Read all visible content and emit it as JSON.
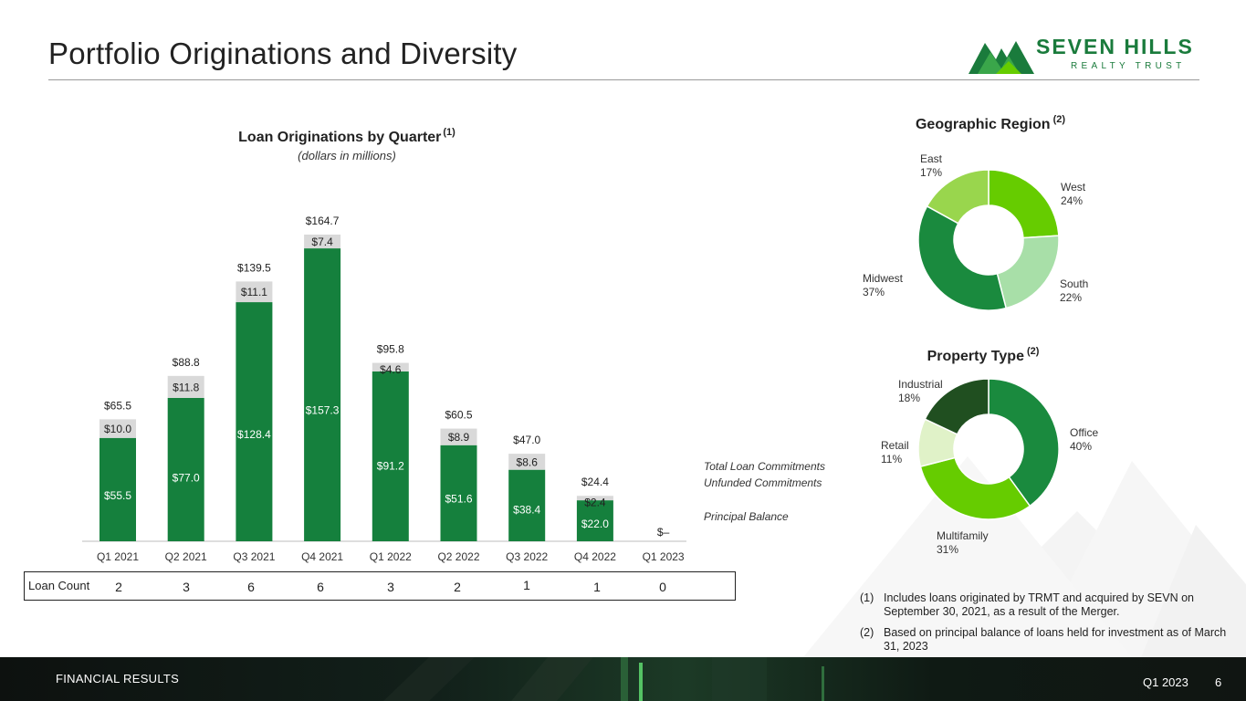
{
  "page": {
    "title": "Portfolio Originations and Diversity",
    "logo": {
      "brand": "SEVEN HILLS",
      "sub": "REALTY TRUST"
    }
  },
  "colors": {
    "primary_green": "#15803d",
    "unfunded_gray": "#d9d9d9",
    "brand_green": "#1a7b3c"
  },
  "legend": {
    "total": "Total Loan Commitments",
    "unfunded": "Unfunded Commitments",
    "principal": "Principal Balance"
  },
  "loan_count": {
    "label": "Loan Count",
    "values": [
      "2",
      "3",
      "6",
      "6",
      "3",
      "2",
      "1",
      "1",
      "0"
    ]
  },
  "chart_data": [
    {
      "type": "bar",
      "stacked": true,
      "title": "Loan Originations by Quarter",
      "title_note": "(1)",
      "subtitle": "(dollars in millions)",
      "categories": [
        "Q1 2021",
        "Q2 2021",
        "Q3 2021",
        "Q4 2021",
        "Q1 2022",
        "Q2 2022",
        "Q3 2022",
        "Q4 2022",
        "Q1 2023"
      ],
      "series": [
        {
          "name": "Principal Balance",
          "color": "#15803d",
          "values": [
            55.5,
            77.0,
            128.4,
            157.3,
            91.2,
            51.6,
            38.4,
            22.0,
            0
          ]
        },
        {
          "name": "Unfunded Commitments",
          "color": "#d9d9d9",
          "values": [
            10.0,
            11.8,
            11.1,
            7.4,
            4.6,
            8.9,
            8.6,
            2.4,
            0
          ]
        }
      ],
      "totals": [
        65.5,
        88.8,
        139.5,
        164.7,
        95.8,
        60.5,
        47.0,
        24.4,
        0
      ],
      "principal_labels": [
        "$55.5",
        "$77.0",
        "$128.4",
        "$157.3",
        "$91.2",
        "$51.6",
        "$38.4",
        "$22.0",
        ""
      ],
      "unfunded_labels": [
        "$10.0",
        "$11.8",
        "$11.1",
        "$7.4",
        "$4.6",
        "$8.9",
        "$8.6",
        "$2.4",
        ""
      ],
      "total_labels": [
        "$65.5",
        "$88.8",
        "$139.5",
        "$164.7",
        "$95.8",
        "$60.5",
        "$47.0",
        "$24.4",
        "$–"
      ],
      "ylim": [
        0,
        175
      ]
    },
    {
      "type": "pie",
      "donut": true,
      "title": "Geographic Region",
      "title_note": "(2)",
      "slices": [
        {
          "label": "West",
          "value": 24,
          "pct": "24%",
          "color": "#66cc00"
        },
        {
          "label": "South",
          "value": 22,
          "pct": "22%",
          "color": "#a8dfa8"
        },
        {
          "label": "Midwest",
          "value": 37,
          "pct": "37%",
          "color": "#1a8a3e"
        },
        {
          "label": "East",
          "value": 17,
          "pct": "17%",
          "color": "#99d64d"
        }
      ]
    },
    {
      "type": "pie",
      "donut": true,
      "title": "Property Type",
      "title_note": "(2)",
      "slices": [
        {
          "label": "Office",
          "value": 40,
          "pct": "40%",
          "color": "#1a8a3e"
        },
        {
          "label": "Multifamily",
          "value": 31,
          "pct": "31%",
          "color": "#66cc00"
        },
        {
          "label": "Retail",
          "value": 11,
          "pct": "11%",
          "color": "#e0f2c8"
        },
        {
          "label": "Industrial",
          "value": 18,
          "pct": "18%",
          "color": "#204f20"
        }
      ]
    }
  ],
  "notes": [
    {
      "num": "(1)",
      "text": "Includes loans originated by TRMT and acquired by SEVN on September 30, 2021, as a result of the Merger."
    },
    {
      "num": "(2)",
      "text": "Based on principal balance of loans held for investment as of March 31, 2023"
    }
  ],
  "footer": {
    "section": "FINANCIAL RESULTS",
    "period": "Q1 2023",
    "page": "6"
  }
}
